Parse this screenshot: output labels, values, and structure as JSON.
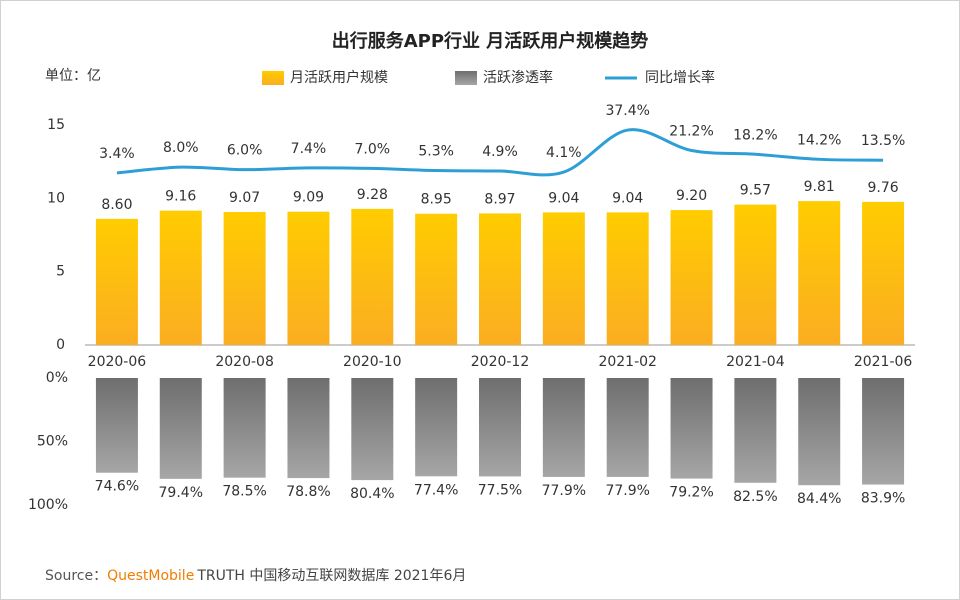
{
  "chart_data": [
    {
      "type": "bar",
      "title": "出行服务APP行业 月活跃用户规模趋势",
      "y_label": "单位：亿",
      "categories": [
        "2020-06",
        null,
        "2020-08",
        null,
        "2020-10",
        null,
        "2020-12",
        null,
        "2021-02",
        null,
        "2021-04",
        null,
        "2021-06"
      ],
      "ylim": [
        0,
        15
      ],
      "yticks": [
        0,
        5,
        10,
        15
      ],
      "y2lim": [
        -133,
        41.4
      ],
      "series": [
        {
          "name": "月活跃用户规模",
          "type": "bar",
          "color": "#ffc000",
          "values": [
            8.6,
            9.16,
            9.07,
            9.09,
            9.28,
            8.95,
            8.97,
            9.04,
            9.04,
            9.2,
            9.57,
            9.81,
            9.76
          ],
          "value_labels": [
            "8.60",
            "9.16",
            "9.07",
            "9.09",
            "9.28",
            "8.95",
            "8.97",
            "9.04",
            "9.04",
            "9.20",
            "9.57",
            "9.81",
            "9.76"
          ]
        },
        {
          "name": "同比增长率",
          "type": "line",
          "axis": "y2",
          "color": "#2e9fd6",
          "values": [
            3.4,
            8.0,
            6.0,
            7.4,
            7.0,
            5.3,
            4.9,
            4.1,
            37.4,
            21.2,
            18.2,
            14.2,
            13.5
          ],
          "value_labels": [
            "3.4%",
            "8.0%",
            "6.0%",
            "7.4%",
            "7.0%",
            "5.3%",
            "4.9%",
            "4.1%",
            "37.4%",
            "21.2%",
            "18.2%",
            "14.2%",
            "13.5%"
          ]
        }
      ]
    },
    {
      "type": "bar",
      "inverted": true,
      "ylim": [
        0,
        100
      ],
      "yticks": [
        {
          "value": 0,
          "label": "0%"
        },
        {
          "value": 50,
          "label": "50%"
        },
        {
          "value": 100,
          "label": "100%"
        }
      ],
      "series": [
        {
          "name": "活跃渗透率",
          "color": "#7f7f7f",
          "values": [
            74.6,
            79.4,
            78.5,
            78.8,
            80.4,
            77.4,
            77.5,
            77.9,
            77.9,
            79.2,
            82.5,
            84.4,
            83.9
          ],
          "value_labels": [
            "74.6%",
            "79.4%",
            "78.5%",
            "78.8%",
            "80.4%",
            "77.4%",
            "77.5%",
            "77.9%",
            "77.9%",
            "79.2%",
            "82.5%",
            "84.4%",
            "83.9%"
          ]
        }
      ]
    }
  ],
  "source": {
    "label": "Source：",
    "brand": "QuestMobile",
    "text": "TRUTH 中国移动互联网数据库 2021年6月"
  }
}
